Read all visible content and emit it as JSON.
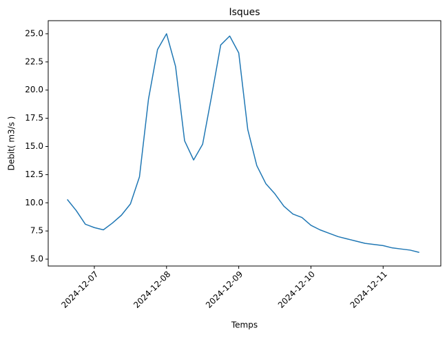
{
  "chart_data": {
    "type": "line",
    "title": "Isques",
    "xlabel": "Temps",
    "ylabel": "Debit( m3/s )",
    "x": [
      "2024-12-06T15:00",
      "2024-12-06T18:00",
      "2024-12-06T21:00",
      "2024-12-07T00:00",
      "2024-12-07T03:00",
      "2024-12-07T06:00",
      "2024-12-07T09:00",
      "2024-12-07T12:00",
      "2024-12-07T15:00",
      "2024-12-07T18:00",
      "2024-12-07T21:00",
      "2024-12-08T00:00",
      "2024-12-08T03:00",
      "2024-12-08T06:00",
      "2024-12-08T09:00",
      "2024-12-08T12:00",
      "2024-12-08T15:00",
      "2024-12-08T18:00",
      "2024-12-08T21:00",
      "2024-12-09T00:00",
      "2024-12-09T03:00",
      "2024-12-09T06:00",
      "2024-12-09T09:00",
      "2024-12-09T12:00",
      "2024-12-09T15:00",
      "2024-12-09T18:00",
      "2024-12-09T21:00",
      "2024-12-10T00:00",
      "2024-12-10T03:00",
      "2024-12-10T06:00",
      "2024-12-10T09:00",
      "2024-12-10T12:00",
      "2024-12-10T15:00",
      "2024-12-10T18:00",
      "2024-12-10T21:00",
      "2024-12-11T00:00",
      "2024-12-11T03:00",
      "2024-12-11T06:00",
      "2024-12-11T09:00",
      "2024-12-11T12:00"
    ],
    "series": [
      {
        "name": "Debit",
        "color": "#1f77b4",
        "values": [
          10.3,
          9.3,
          8.1,
          7.8,
          7.6,
          8.2,
          8.9,
          9.9,
          12.3,
          19.2,
          23.6,
          25.0,
          22.1,
          15.5,
          13.8,
          15.2,
          19.5,
          24.0,
          24.8,
          23.3,
          16.5,
          13.3,
          11.7,
          10.8,
          9.7,
          9.0,
          8.7,
          8.0,
          7.6,
          7.3,
          7.0,
          6.8,
          6.6,
          6.4,
          6.3,
          6.2,
          6.0,
          5.9,
          5.8,
          5.6
        ]
      }
    ],
    "xlim": [
      "2024-12-06T08:40",
      "2024-12-11T19:10"
    ],
    "xticks": [
      "2024-12-07",
      "2024-12-08",
      "2024-12-09",
      "2024-12-10",
      "2024-12-11"
    ],
    "ylim": [
      4.39,
      26.16
    ],
    "yticks": [
      {
        "value": 5,
        "label": "5.0"
      },
      7.5,
      {
        "value": 10,
        "label": "10.0"
      },
      12.5,
      {
        "value": 15,
        "label": "15.0"
      },
      17.5,
      {
        "value": 20,
        "label": "20.0"
      },
      22.5,
      {
        "value": 25,
        "label": "25.0"
      }
    ],
    "grid": false
  }
}
